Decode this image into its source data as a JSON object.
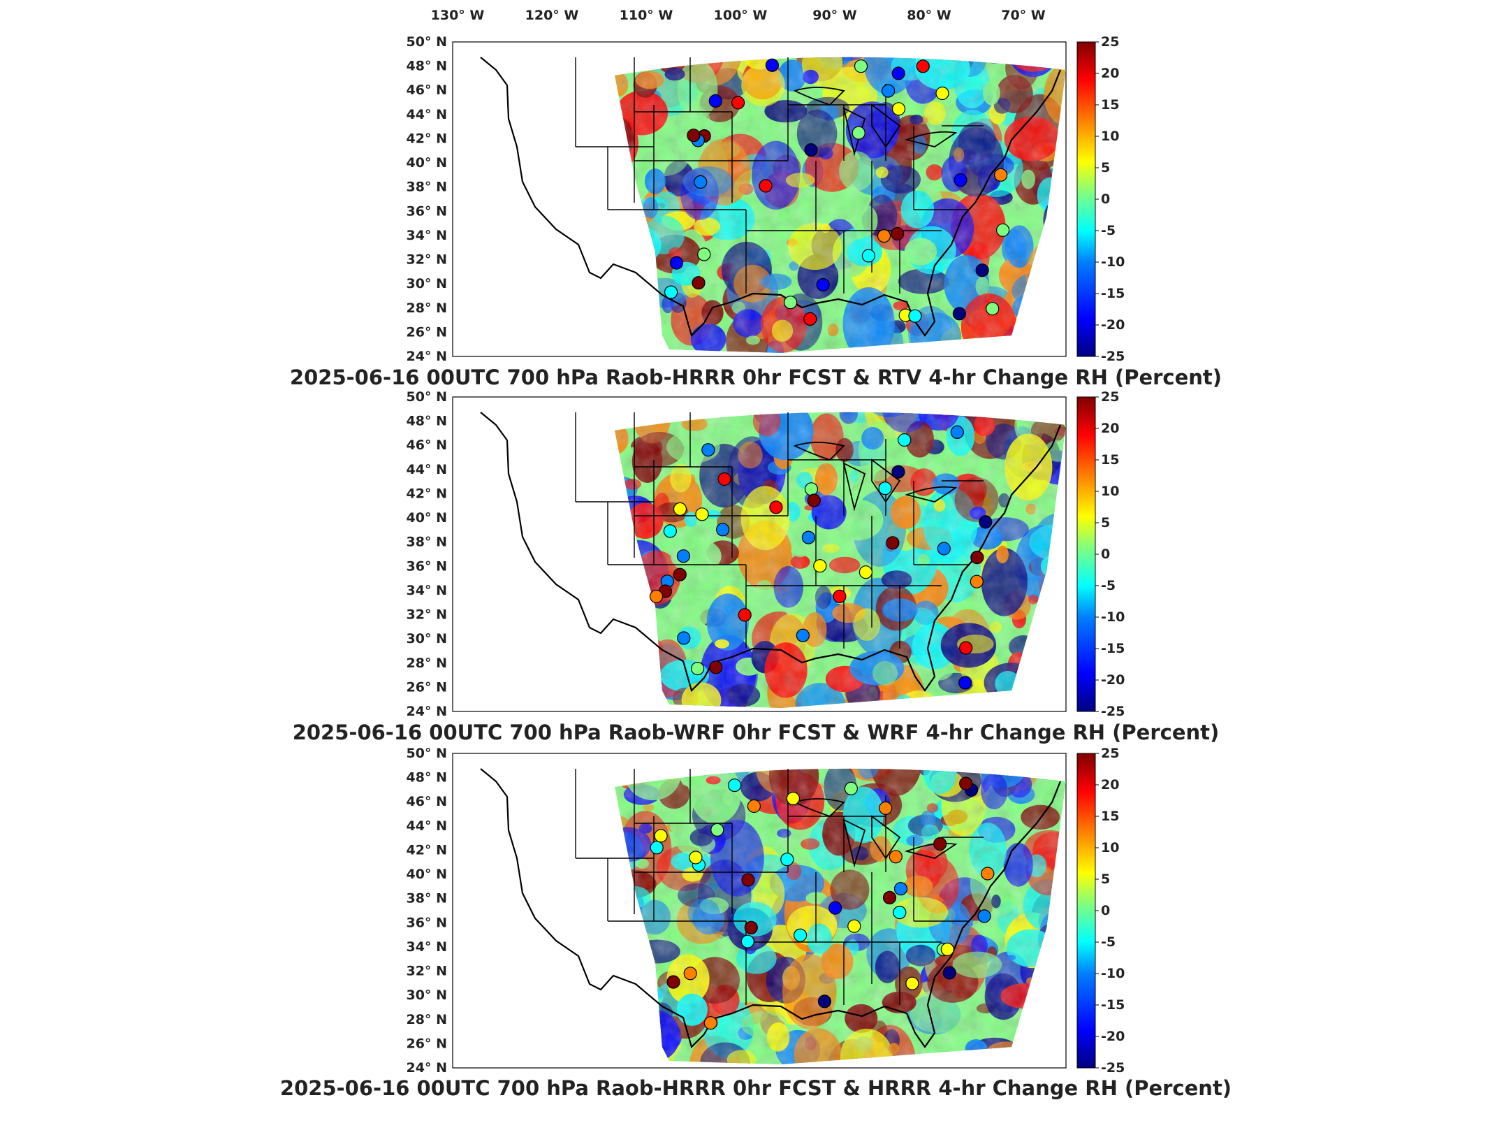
{
  "lon_labels": [
    "130° W",
    "120° W",
    "110° W",
    "100° W",
    "90° W",
    "80° W",
    "70° W"
  ],
  "lat_labels": [
    "50° N",
    "48° N",
    "46° N",
    "44° N",
    "42° N",
    "40° N",
    "38° N",
    "36° N",
    "34° N",
    "32° N",
    "30° N",
    "28° N",
    "26° N",
    "24° N"
  ],
  "colorbar": {
    "ticks": [
      "25",
      "20",
      "15",
      "10",
      "5",
      "0",
      "-5",
      "-10",
      "-15",
      "-20",
      "-25"
    ],
    "colors": [
      "#00007f",
      "#0000ff",
      "#007fff",
      "#00ffff",
      "#7fff7f",
      "#ffff00",
      "#ff7f00",
      "#ff0000",
      "#7f0000"
    ]
  },
  "panels": [
    {
      "title": "2025-06-16 00UTC 700 hPa Raob-HRRR 0hr FCST & RTV 4-hr Change RH (Percent)"
    },
    {
      "title": "2025-06-16 00UTC 700 hPa Raob-WRF 0hr FCST & WRF 4-hr Change RH (Percent)"
    },
    {
      "title": "2025-06-16 00UTC 700 hPa Raob-HRRR 0hr FCST & HRRR 4-hr Change RH (Percent)"
    }
  ]
}
